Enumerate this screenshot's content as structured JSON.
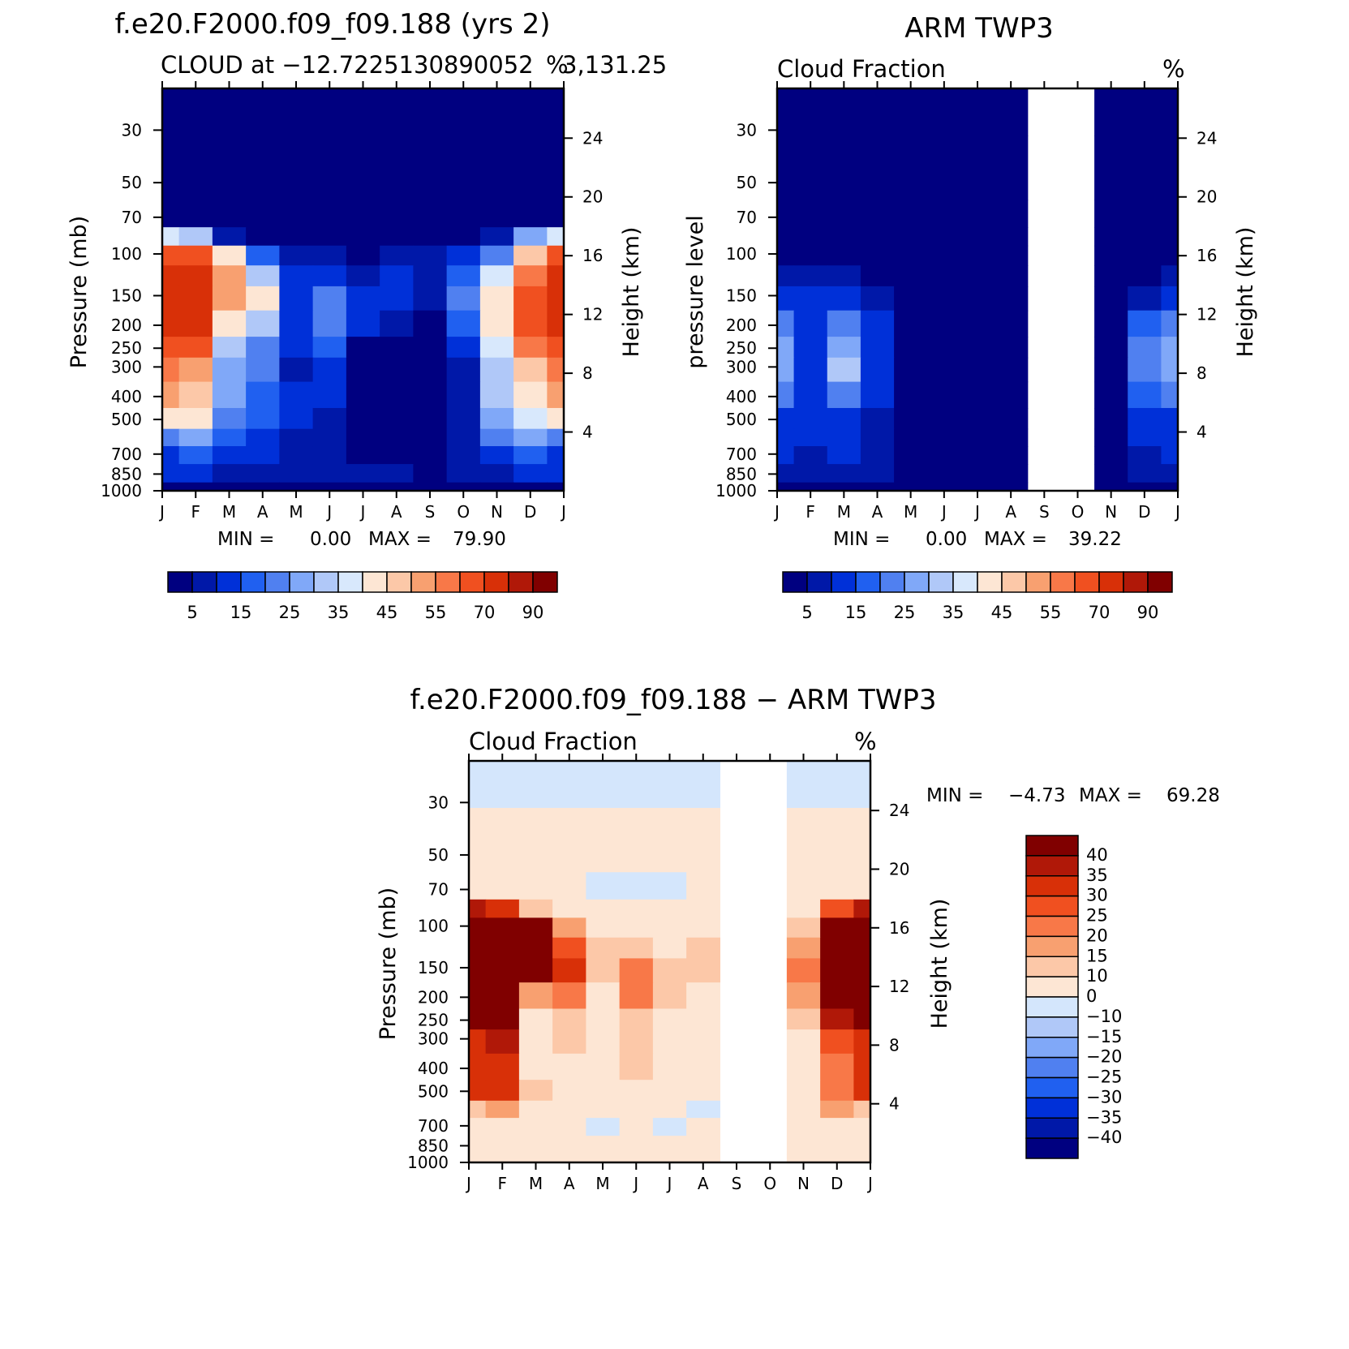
{
  "figure": {
    "panels": {
      "model": {
        "title": "f.e20.F2000.f09_f09.188 (yrs 2)",
        "subtitle_left": "CLOUD at −12.7225130890052",
        "subtitle_right": "%",
        "subtitle_tail": "3,131.25",
        "ylabel_left": "Pressure (mb)",
        "ylabel_right": "Height (km)",
        "min_label": "MIN =",
        "min_value": "0.00",
        "max_label": "MAX =",
        "max_value": "79.90"
      },
      "obs": {
        "title": "ARM TWP3",
        "subtitle_left": "Cloud Fraction",
        "subtitle_right": "%",
        "ylabel_left": "pressure level",
        "ylabel_right": "Height (km)",
        "min_label": "MIN =",
        "min_value": "0.00",
        "max_label": "MAX =",
        "max_value": "39.22"
      },
      "diff": {
        "title": "f.e20.F2000.f09_f09.188 − ARM TWP3",
        "subtitle_left": "Cloud Fraction",
        "subtitle_right": "%",
        "ylabel_left": "Pressure (mb)",
        "ylabel_right": "Height (km)",
        "min_label": "MIN =",
        "min_value": "−4.73",
        "max_label": "MAX =",
        "max_value": "69.28"
      }
    }
  },
  "chart_data": [
    {
      "type": "heatmap",
      "title": "f.e20.F2000.f09_f09.188 (yrs 2)",
      "subtitle": "CLOUD at −12.72251308900523,131.25",
      "units": "%",
      "ylabel": "Pressure (mb)",
      "ylabel_right": "Height (km)",
      "x_ticks": [
        "J",
        "F",
        "M",
        "A",
        "M",
        "J",
        "J",
        "A",
        "S",
        "O",
        "N",
        "D",
        "J"
      ],
      "y_ticks": [
        "30",
        "50",
        "70",
        "100",
        "150",
        "200",
        "250",
        "300",
        "400",
        "500",
        "700",
        "850",
        "1000"
      ],
      "y_ticks_right": [
        "24",
        "20",
        "16",
        "12",
        "8",
        "4"
      ],
      "y_scale": "log-pressure",
      "ylim": [
        1000,
        20
      ],
      "months": [
        "J",
        "F",
        "M",
        "A",
        "M",
        "J",
        "J",
        "A",
        "S",
        "O",
        "N",
        "D",
        "J"
      ],
      "pressure_levels": [
        20,
        50,
        70,
        85,
        100,
        125,
        150,
        200,
        250,
        300,
        400,
        500,
        600,
        700,
        850,
        1000
      ],
      "values": [
        [
          0,
          0,
          0,
          0,
          0,
          0,
          0,
          0,
          0,
          0,
          0,
          0,
          0
        ],
        [
          0,
          0,
          0,
          0,
          0,
          0,
          0,
          0,
          0,
          0,
          0,
          0,
          0
        ],
        [
          2,
          2,
          1,
          0,
          0,
          0,
          0,
          0,
          0,
          0,
          0,
          1,
          2
        ],
        [
          35,
          30,
          8,
          4,
          2,
          1,
          0,
          1,
          1,
          2,
          7,
          25,
          35
        ],
        [
          68,
          60,
          42,
          16,
          8,
          6,
          3,
          5,
          6,
          10,
          22,
          45,
          65
        ],
        [
          72,
          70,
          50,
          30,
          10,
          11,
          6,
          10,
          8,
          18,
          35,
          55,
          70
        ],
        [
          73,
          72,
          50,
          40,
          12,
          22,
          14,
          12,
          9,
          20,
          40,
          60,
          72
        ],
        [
          72,
          70,
          40,
          34,
          10,
          24,
          12,
          6,
          4,
          16,
          40,
          62,
          72
        ],
        [
          66,
          60,
          32,
          22,
          10,
          16,
          4,
          2,
          2,
          10,
          36,
          56,
          66
        ],
        [
          58,
          52,
          28,
          20,
          8,
          12,
          2,
          1,
          1,
          8,
          32,
          48,
          58
        ],
        [
          50,
          46,
          26,
          18,
          10,
          10,
          2,
          1,
          1,
          8,
          30,
          40,
          50
        ],
        [
          44,
          42,
          24,
          16,
          10,
          8,
          2,
          1,
          1,
          8,
          28,
          36,
          44
        ],
        [
          24,
          26,
          18,
          14,
          8,
          6,
          2,
          1,
          2,
          8,
          22,
          28,
          24
        ],
        [
          14,
          15,
          12,
          10,
          8,
          6,
          2,
          2,
          3,
          6,
          12,
          15,
          14
        ],
        [
          10,
          10,
          9,
          8,
          6,
          8,
          6,
          7,
          4,
          5,
          8,
          10,
          10
        ],
        [
          4,
          4,
          4,
          4,
          4,
          4,
          4,
          4,
          4,
          4,
          4,
          4,
          4
        ]
      ],
      "stats": {
        "min": 0.0,
        "max": 79.9
      },
      "colorbar_labels": [
        "5",
        "15",
        "25",
        "35",
        "45",
        "55",
        "70",
        "90"
      ]
    },
    {
      "type": "heatmap",
      "title": "ARM TWP3",
      "subtitle": "Cloud Fraction",
      "units": "%",
      "ylabel": "pressure level",
      "ylabel_right": "Height (km)",
      "x_ticks": [
        "J",
        "F",
        "M",
        "A",
        "M",
        "J",
        "J",
        "A",
        "S",
        "O",
        "N",
        "D",
        "J"
      ],
      "y_ticks": [
        "30",
        "50",
        "70",
        "100",
        "150",
        "200",
        "250",
        "300",
        "400",
        "500",
        "700",
        "850",
        "1000"
      ],
      "y_ticks_right": [
        "24",
        "20",
        "16",
        "12",
        "8",
        "4"
      ],
      "y_scale": "log-pressure",
      "ylim": [
        1000,
        20
      ],
      "missing_months": [
        "S",
        "O"
      ],
      "months": [
        "J",
        "F",
        "M",
        "A",
        "M",
        "J",
        "J",
        "A",
        "S",
        "O",
        "N",
        "D",
        "J"
      ],
      "pressure_levels": [
        20,
        50,
        70,
        85,
        100,
        125,
        150,
        200,
        250,
        300,
        400,
        500,
        600,
        700,
        850,
        1000
      ],
      "values": [
        [
          0,
          0,
          0,
          0,
          0,
          0,
          0,
          0,
          null,
          null,
          0,
          0,
          0
        ],
        [
          0,
          0,
          0,
          0,
          0,
          0,
          0,
          0,
          null,
          null,
          0,
          0,
          0
        ],
        [
          0,
          0,
          0,
          0,
          0,
          0,
          0,
          0,
          null,
          null,
          0,
          0,
          0
        ],
        [
          1,
          0,
          0,
          0,
          0,
          0,
          0,
          0,
          null,
          null,
          0,
          0,
          1
        ],
        [
          2,
          1,
          1,
          0,
          0,
          0,
          0,
          0,
          null,
          null,
          0,
          1,
          2
        ],
        [
          6,
          5,
          6,
          3,
          0,
          0,
          0,
          0,
          null,
          null,
          0,
          3,
          6
        ],
        [
          12,
          10,
          12,
          6,
          3,
          0,
          0,
          0,
          null,
          null,
          0,
          8,
          12
        ],
        [
          20,
          14,
          24,
          10,
          4,
          0,
          0,
          0,
          null,
          null,
          0,
          16,
          20
        ],
        [
          28,
          14,
          28,
          10,
          4,
          0,
          0,
          0,
          null,
          null,
          0,
          20,
          28
        ],
        [
          28,
          14,
          30,
          10,
          4,
          0,
          0,
          0,
          null,
          null,
          0,
          22,
          28
        ],
        [
          22,
          12,
          22,
          10,
          4,
          0,
          0,
          0,
          null,
          null,
          0,
          18,
          22
        ],
        [
          14,
          10,
          14,
          9,
          3,
          0,
          0,
          0,
          null,
          null,
          0,
          12,
          14
        ],
        [
          12,
          10,
          12,
          8,
          3,
          0,
          0,
          0,
          null,
          null,
          0,
          10,
          12
        ],
        [
          10,
          8,
          10,
          8,
          3,
          1,
          0,
          0,
          null,
          null,
          0,
          8,
          10
        ],
        [
          8,
          7,
          8,
          7,
          3,
          3,
          0,
          0,
          null,
          null,
          0,
          7,
          8
        ],
        [
          4,
          4,
          4,
          4,
          2,
          1,
          0,
          0,
          null,
          null,
          0,
          4,
          4
        ]
      ],
      "stats": {
        "min": 0.0,
        "max": 39.22
      },
      "colorbar_labels": [
        "5",
        "15",
        "25",
        "35",
        "45",
        "55",
        "70",
        "90"
      ]
    },
    {
      "type": "heatmap",
      "title": "f.e20.F2000.f09_f09.188 − ARM TWP3",
      "subtitle": "Cloud Fraction",
      "units": "%",
      "ylabel": "Pressure (mb)",
      "ylabel_right": "Height (km)",
      "x_ticks": [
        "J",
        "F",
        "M",
        "A",
        "M",
        "J",
        "J",
        "A",
        "S",
        "O",
        "N",
        "D",
        "J"
      ],
      "y_ticks": [
        "30",
        "50",
        "70",
        "100",
        "150",
        "200",
        "250",
        "300",
        "400",
        "500",
        "700",
        "850",
        "1000"
      ],
      "y_ticks_right": [
        "24",
        "20",
        "16",
        "12",
        "8",
        "4"
      ],
      "y_scale": "log-pressure",
      "ylim": [
        1000,
        20
      ],
      "missing_months": [
        "S",
        "O"
      ],
      "months": [
        "J",
        "F",
        "M",
        "A",
        "M",
        "J",
        "J",
        "A",
        "S",
        "O",
        "N",
        "D",
        "J"
      ],
      "pressure_levels": [
        20,
        50,
        70,
        85,
        100,
        125,
        150,
        200,
        250,
        300,
        400,
        500,
        600,
        700,
        850,
        1000
      ],
      "values": [
        [
          -2,
          -2,
          -2,
          -2,
          -2,
          -2,
          -2,
          -2,
          null,
          null,
          -2,
          -2,
          -2
        ],
        [
          2,
          2,
          2,
          2,
          2,
          2,
          2,
          2,
          null,
          null,
          2,
          2,
          2
        ],
        [
          5,
          4,
          4,
          3,
          -2,
          -2,
          -2,
          3,
          null,
          null,
          3,
          4,
          5
        ],
        [
          36,
          30,
          10,
          6,
          2,
          1,
          2,
          3,
          null,
          null,
          6,
          25,
          36
        ],
        [
          64,
          58,
          40,
          16,
          8,
          6,
          3,
          5,
          null,
          null,
          10,
          44,
          64
        ],
        [
          66,
          64,
          44,
          26,
          10,
          12,
          6,
          10,
          null,
          null,
          18,
          50,
          66
        ],
        [
          62,
          60,
          40,
          32,
          10,
          22,
          14,
          12,
          null,
          null,
          20,
          52,
          62
        ],
        [
          54,
          56,
          16,
          24,
          6,
          24,
          12,
          6,
          null,
          null,
          16,
          46,
          54
        ],
        [
          40,
          46,
          8,
          12,
          6,
          14,
          4,
          2,
          null,
          null,
          10,
          36,
          40
        ],
        [
          30,
          38,
          4,
          10,
          4,
          12,
          2,
          1,
          null,
          null,
          8,
          26,
          30
        ],
        [
          30,
          34,
          4,
          8,
          6,
          10,
          2,
          1,
          null,
          null,
          8,
          22,
          30
        ],
        [
          30,
          32,
          10,
          8,
          8,
          8,
          2,
          1,
          null,
          null,
          8,
          24,
          30
        ],
        [
          12,
          16,
          6,
          6,
          4,
          6,
          2,
          -2,
          null,
          null,
          8,
          18,
          12
        ],
        [
          4,
          8,
          2,
          2,
          -2,
          2,
          -2,
          2,
          null,
          null,
          4,
          8,
          4
        ],
        [
          2,
          3,
          1,
          4,
          4,
          8,
          6,
          7,
          null,
          null,
          4,
          3,
          2
        ],
        [
          0,
          0,
          0,
          0,
          0,
          0,
          0,
          0,
          null,
          null,
          0,
          0,
          0
        ]
      ],
      "stats": {
        "min": -4.73,
        "max": 69.28
      },
      "colorbar_labels": [
        "40",
        "35",
        "30",
        "25",
        "20",
        "15",
        "10",
        "0",
        "−10",
        "−15",
        "−20",
        "−25",
        "−30",
        "−35",
        "−40"
      ]
    }
  ],
  "colors": {
    "seq": [
      "#000080",
      "#0018a8",
      "#0030d8",
      "#2060f0",
      "#5080f0",
      "#80a8f8",
      "#b0c8f8",
      "#d8e8fc",
      "#fde6d4",
      "#fcc8a8",
      "#f8a070",
      "#f87848",
      "#f05020",
      "#d83008",
      "#b01808",
      "#800000"
    ],
    "div": [
      "#000080",
      "#0018a8",
      "#0030d8",
      "#2060f0",
      "#5080f0",
      "#80a8f8",
      "#b0c8f8",
      "#d4e6fc",
      "#fde6d4",
      "#fcc8a8",
      "#f8a070",
      "#f87848",
      "#f05020",
      "#d83008",
      "#b01808",
      "#800000"
    ]
  }
}
